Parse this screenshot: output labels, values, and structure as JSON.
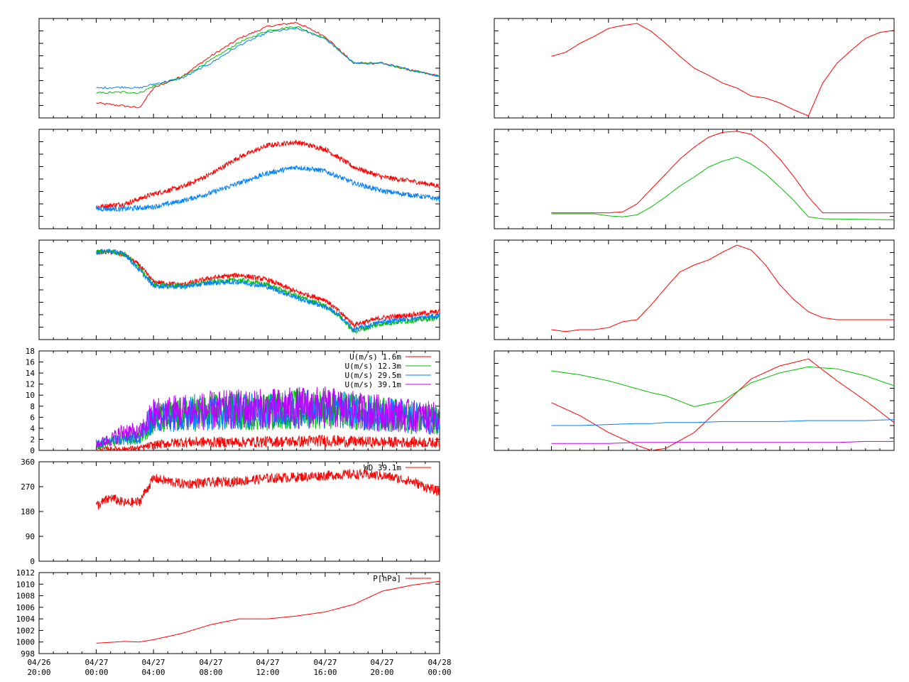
{
  "x_ticks": [
    {
      "date": "04/26",
      "time": "20:00"
    },
    {
      "date": "04/27",
      "time": "00:00"
    },
    {
      "date": "04/27",
      "time": "04:00"
    },
    {
      "date": "04/27",
      "time": "08:00"
    },
    {
      "date": "04/27",
      "time": "12:00"
    },
    {
      "date": "04/27",
      "time": "16:00"
    },
    {
      "date": "04/27",
      "time": "20:00"
    },
    {
      "date": "04/28",
      "time": "00:00"
    }
  ],
  "colors": {
    "red": "#ff0000",
    "green": "#00c000",
    "blue": "#0080ff",
    "purple": "#c000ff"
  },
  "chart_data": [
    {
      "type": "line",
      "panel": "left-1",
      "time_range": [
        "04/26 20:00",
        "04/28 00:00"
      ],
      "x": [
        "04/27 00:00",
        "04/27 02:00",
        "04/27 03:00",
        "04/27 04:00",
        "04/27 06:00",
        "04/27 08:00",
        "04/27 10:00",
        "04/27 12:00",
        "04/27 14:00",
        "04/27 16:00",
        "04/27 18:00",
        "04/27 20:00",
        "04/27 22:00",
        "04/28 00:00"
      ],
      "y_ticks_labeled": false,
      "series": [
        {
          "color": "red",
          "values": [
            0.15,
            0.12,
            0.1,
            0.3,
            0.42,
            0.62,
            0.8,
            0.92,
            0.96,
            0.82,
            0.55,
            0.55,
            0.48,
            0.42
          ]
        },
        {
          "color": "green",
          "values": [
            0.25,
            0.26,
            0.25,
            0.32,
            0.41,
            0.58,
            0.76,
            0.88,
            0.92,
            0.8,
            0.55,
            0.55,
            0.48,
            0.42
          ]
        },
        {
          "color": "blue",
          "values": [
            0.3,
            0.31,
            0.3,
            0.34,
            0.4,
            0.55,
            0.73,
            0.86,
            0.9,
            0.8,
            0.55,
            0.55,
            0.48,
            0.42
          ]
        }
      ]
    },
    {
      "type": "line",
      "panel": "left-2",
      "x": [
        "04/27 00:00",
        "04/27 02:00",
        "04/27 04:00",
        "04/27 06:00",
        "04/27 08:00",
        "04/27 10:00",
        "04/27 12:00",
        "04/27 14:00",
        "04/27 16:00",
        "04/27 18:00",
        "04/27 20:00",
        "04/27 22:00",
        "04/28 00:00"
      ],
      "y_ticks_labeled": false,
      "series": [
        {
          "color": "red",
          "values": [
            0.22,
            0.25,
            0.35,
            0.42,
            0.55,
            0.72,
            0.84,
            0.87,
            0.8,
            0.62,
            0.52,
            0.48,
            0.43
          ]
        },
        {
          "color": "blue",
          "values": [
            0.2,
            0.2,
            0.22,
            0.28,
            0.36,
            0.46,
            0.56,
            0.62,
            0.58,
            0.46,
            0.38,
            0.34,
            0.3
          ]
        }
      ]
    },
    {
      "type": "line",
      "panel": "left-3",
      "x": [
        "04/27 00:00",
        "04/27 01:00",
        "04/27 02:00",
        "04/27 03:00",
        "04/27 04:00",
        "04/27 06:00",
        "04/27 08:00",
        "04/27 10:00",
        "04/27 12:00",
        "04/27 14:00",
        "04/27 16:00",
        "04/27 17:00",
        "04/27 18:00",
        "04/27 20:00",
        "04/27 22:00",
        "04/28 00:00"
      ],
      "y_ticks_labeled": false,
      "series": [
        {
          "color": "red",
          "values": [
            0.88,
            0.88,
            0.85,
            0.75,
            0.58,
            0.55,
            0.62,
            0.65,
            0.6,
            0.48,
            0.4,
            0.28,
            0.15,
            0.22,
            0.25,
            0.28
          ]
        },
        {
          "color": "green",
          "values": [
            0.88,
            0.89,
            0.86,
            0.72,
            0.55,
            0.54,
            0.58,
            0.6,
            0.55,
            0.44,
            0.34,
            0.24,
            0.08,
            0.16,
            0.19,
            0.22
          ]
        },
        {
          "color": "blue",
          "values": [
            0.88,
            0.89,
            0.86,
            0.7,
            0.54,
            0.53,
            0.57,
            0.58,
            0.53,
            0.42,
            0.33,
            0.24,
            0.1,
            0.18,
            0.21,
            0.24
          ]
        }
      ]
    },
    {
      "type": "line",
      "panel": "left-4 wind speed",
      "ylim": [
        0,
        18
      ],
      "y_ticks": [
        0,
        2,
        4,
        6,
        8,
        10,
        12,
        14,
        16,
        18
      ],
      "legend_position": "top-right",
      "x": [
        "04/27 00:00",
        "04/27 01:00",
        "04/27 02:00",
        "04/27 03:00",
        "04/27 04:00",
        "04/27 06:00",
        "04/27 08:00",
        "04/27 10:00",
        "04/27 12:00",
        "04/27 14:00",
        "04/27 16:00",
        "04/27 18:00",
        "04/27 20:00",
        "04/27 22:00",
        "04/28 00:00"
      ],
      "series": [
        {
          "name": "U(m/s)  1.6m",
          "color": "red",
          "values": [
            0.2,
            0.3,
            0.3,
            0.4,
            1.0,
            1.5,
            1.5,
            1.5,
            1.6,
            1.6,
            1.8,
            1.6,
            1.5,
            1.5,
            1.4
          ]
        },
        {
          "name": "U(m/s) 12.3m",
          "color": "green",
          "values": [
            1.0,
            1.5,
            2.0,
            2.5,
            5.5,
            6.5,
            6.8,
            7.0,
            7.0,
            7.5,
            7.5,
            7.0,
            6.5,
            6.0,
            5.5
          ]
        },
        {
          "name": "U(m/s) 29.5m",
          "color": "blue",
          "values": [
            1.0,
            1.8,
            2.0,
            2.5,
            6.0,
            6.8,
            7.0,
            7.2,
            7.2,
            7.5,
            7.5,
            7.0,
            6.5,
            6.0,
            5.5
          ]
        },
        {
          "name": "U(m/s) 39.1m",
          "color": "purple",
          "values": [
            1.2,
            2.0,
            3.5,
            3.0,
            6.5,
            7.0,
            7.2,
            7.5,
            7.5,
            7.8,
            7.8,
            7.2,
            6.8,
            6.2,
            5.8
          ]
        }
      ],
      "legend_names": [
        "U(m/s)  1.6m",
        "U(m/s) 12.3m",
        "U(m/s) 29.5m",
        "U(m/s) 39.1m"
      ]
    },
    {
      "type": "line",
      "panel": "left-5 wind direction",
      "ylim": [
        0,
        360
      ],
      "y_ticks": [
        0,
        90,
        180,
        270,
        360
      ],
      "legend_position": "top-right",
      "x": [
        "04/27 00:00",
        "04/27 01:00",
        "04/27 02:00",
        "04/27 03:00",
        "04/27 04:00",
        "04/27 06:00",
        "04/27 08:00",
        "04/27 10:00",
        "04/27 12:00",
        "04/27 14:00",
        "04/27 16:00",
        "04/27 18:00",
        "04/27 20:00",
        "04/27 22:00",
        "04/28 00:00"
      ],
      "series": [
        {
          "name": "WD 39.1m",
          "color": "red",
          "values": [
            200,
            230,
            210,
            215,
            300,
            280,
            285,
            290,
            300,
            305,
            310,
            315,
            310,
            290,
            250
          ]
        }
      ],
      "legend_names": [
        "WD 39.1m"
      ]
    },
    {
      "type": "line",
      "panel": "left-6 pressure",
      "ylim": [
        998,
        1012
      ],
      "y_ticks": [
        998,
        1000,
        1002,
        1004,
        1006,
        1008,
        1010,
        1012
      ],
      "legend_position": "top-right",
      "x": [
        "04/27 00:00",
        "04/27 02:00",
        "04/27 03:00",
        "04/27 04:00",
        "04/27 06:00",
        "04/27 08:00",
        "04/27 10:00",
        "04/27 12:00",
        "04/27 14:00",
        "04/27 16:00",
        "04/27 18:00",
        "04/27 20:00",
        "04/27 22:00",
        "04/28 00:00"
      ],
      "series": [
        {
          "name": "P[hPa]",
          "color": "red",
          "values": [
            999.8,
            1000.1,
            1000.0,
            1000.4,
            1001.5,
            1003.0,
            1004.0,
            1004.0,
            1004.5,
            1005.2,
            1006.5,
            1008.8,
            1009.8,
            1010.5
          ]
        }
      ],
      "legend_names": [
        "P[hPa]"
      ]
    },
    {
      "type": "line",
      "panel": "right-1",
      "x": [
        "04/27 00:00",
        "04/27 01:00",
        "04/27 02:00",
        "04/27 03:00",
        "04/27 04:00",
        "04/27 05:00",
        "04/27 06:00",
        "04/27 07:00",
        "04/27 08:00",
        "04/27 09:00",
        "04/27 10:00",
        "04/27 11:00",
        "04/27 12:00",
        "04/27 13:00",
        "04/27 14:00",
        "04/27 15:00",
        "04/27 16:00",
        "04/27 17:00",
        "04/27 18:00",
        "04/27 19:00",
        "04/27 20:00",
        "04/27 21:00",
        "04/27 22:00",
        "04/27 23:00",
        "04/28 00:00"
      ],
      "y_ticks_labeled": false,
      "series": [
        {
          "color": "red",
          "values": [
            0.62,
            0.66,
            0.75,
            0.82,
            0.9,
            0.93,
            0.95,
            0.87,
            0.75,
            0.62,
            0.5,
            0.43,
            0.35,
            0.3,
            0.22,
            0.2,
            0.15,
            0.08,
            0.02,
            0.35,
            0.55,
            0.68,
            0.8,
            0.86,
            0.88
          ]
        }
      ]
    },
    {
      "type": "line",
      "panel": "right-2",
      "x": [
        "04/27 00:00",
        "04/27 03:00",
        "04/27 04:00",
        "04/27 05:00",
        "04/27 06:00",
        "04/27 07:00",
        "04/27 08:00",
        "04/27 09:00",
        "04/27 10:00",
        "04/27 11:00",
        "04/27 12:00",
        "04/27 13:00",
        "04/27 14:00",
        "04/27 15:00",
        "04/27 16:00",
        "04/27 17:00",
        "04/27 18:00",
        "04/27 19:00",
        "04/28 00:00"
      ],
      "y_ticks_labeled": false,
      "series": [
        {
          "color": "red",
          "values": [
            0.16,
            0.16,
            0.16,
            0.17,
            0.25,
            0.4,
            0.55,
            0.7,
            0.82,
            0.92,
            0.97,
            0.98,
            0.95,
            0.85,
            0.7,
            0.52,
            0.32,
            0.16,
            0.16
          ]
        },
        {
          "color": "green",
          "values": [
            0.15,
            0.15,
            0.13,
            0.12,
            0.14,
            0.22,
            0.32,
            0.43,
            0.52,
            0.62,
            0.68,
            0.72,
            0.65,
            0.55,
            0.42,
            0.28,
            0.12,
            0.1,
            0.09
          ]
        }
      ]
    },
    {
      "type": "line",
      "panel": "right-3",
      "x": [
        "04/27 00:00",
        "04/27 01:00",
        "04/27 02:00",
        "04/27 03:00",
        "04/27 04:00",
        "04/27 05:00",
        "04/27 06:00",
        "04/27 07:00",
        "04/27 08:00",
        "04/27 09:00",
        "04/27 10:00",
        "04/27 11:00",
        "04/27 12:00",
        "04/27 13:00",
        "04/27 14:00",
        "04/27 15:00",
        "04/27 16:00",
        "04/27 17:00",
        "04/27 18:00",
        "04/27 19:00",
        "04/27 20:00",
        "04/28 00:00"
      ],
      "y_ticks_labeled": false,
      "series": [
        {
          "color": "red",
          "values": [
            0.1,
            0.08,
            0.1,
            0.1,
            0.12,
            0.18,
            0.2,
            0.35,
            0.52,
            0.68,
            0.75,
            0.8,
            0.88,
            0.95,
            0.9,
            0.75,
            0.55,
            0.4,
            0.28,
            0.22,
            0.2,
            0.2
          ]
        }
      ]
    },
    {
      "type": "line",
      "panel": "right-4",
      "x": [
        "04/27 00:00",
        "04/27 02:00",
        "04/27 04:00",
        "04/27 06:00",
        "04/27 07:00",
        "04/27 08:00",
        "04/27 10:00",
        "04/27 12:00",
        "04/27 14:00",
        "04/27 16:00",
        "04/27 18:00",
        "04/27 20:00",
        "04/27 22:00",
        "04/28 00:00"
      ],
      "y_ticks_labeled": false,
      "series": [
        {
          "color": "red",
          "values": [
            0.48,
            0.35,
            0.18,
            0.05,
            0.0,
            0.02,
            0.18,
            0.45,
            0.72,
            0.85,
            0.92,
            0.7,
            0.5,
            0.28
          ]
        },
        {
          "color": "green",
          "values": [
            0.8,
            0.76,
            0.7,
            0.62,
            0.58,
            0.55,
            0.44,
            0.5,
            0.68,
            0.78,
            0.84,
            0.82,
            0.75,
            0.65
          ]
        },
        {
          "color": "blue",
          "values": [
            0.25,
            0.25,
            0.26,
            0.27,
            0.27,
            0.28,
            0.28,
            0.29,
            0.29,
            0.29,
            0.3,
            0.3,
            0.3,
            0.31
          ]
        },
        {
          "color": "purple",
          "values": [
            0.07,
            0.07,
            0.07,
            0.08,
            0.08,
            0.08,
            0.08,
            0.08,
            0.08,
            0.08,
            0.08,
            0.08,
            0.09,
            0.09
          ]
        }
      ]
    }
  ]
}
